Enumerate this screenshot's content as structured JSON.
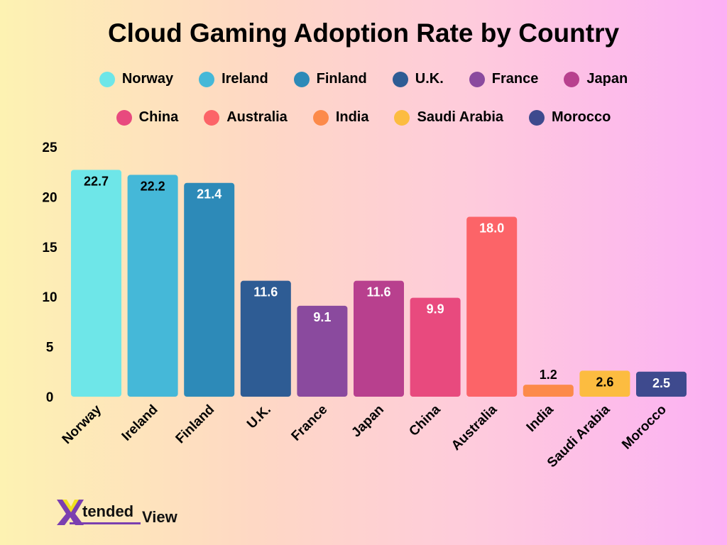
{
  "chart_data": {
    "type": "bar",
    "title": "Cloud Gaming Adoption Rate by Country",
    "categories": [
      "Norway",
      "Ireland",
      "Finland",
      "U.K.",
      "France",
      "Japan",
      "China",
      "Australia",
      "India",
      "Saudi Arabia",
      "Morocco"
    ],
    "values": [
      22.7,
      22.2,
      21.4,
      11.6,
      9.1,
      11.6,
      9.9,
      18.0,
      1.2,
      2.6,
      2.5
    ],
    "data_labels": [
      "22.7",
      "22.2",
      "21.4",
      "11.6",
      "9.1",
      "11.6",
      "9.9",
      "18.0",
      "1.2",
      "2.6",
      "2.5"
    ],
    "colors": [
      "#6ee6e8",
      "#45b8d8",
      "#2d8ab8",
      "#2e5c94",
      "#8a4a9e",
      "#b8408e",
      "#e84a7e",
      "#fc6468",
      "#fc8a4a",
      "#fcbc40",
      "#3e4a8e"
    ],
    "label_colors": [
      "#000000",
      "#000000",
      "#ffffff",
      "#ffffff",
      "#ffffff",
      "#ffffff",
      "#ffffff",
      "#ffffff",
      "#000000",
      "#000000",
      "#ffffff"
    ],
    "ylim": [
      0,
      25
    ],
    "yticks": [
      "0",
      "5",
      "10",
      "15",
      "20",
      "25"
    ],
    "xlabel": "",
    "ylabel": "",
    "grid": false,
    "legend": {
      "position": "top",
      "rows": [
        [
          "Norway",
          "Ireland",
          "Finland",
          "U.K.",
          "France",
          "Japan"
        ],
        [
          "China",
          "Australia",
          "India",
          "Saudi Arabia",
          "Morocco"
        ]
      ]
    }
  },
  "logo": {
    "text": "XtendedView"
  }
}
